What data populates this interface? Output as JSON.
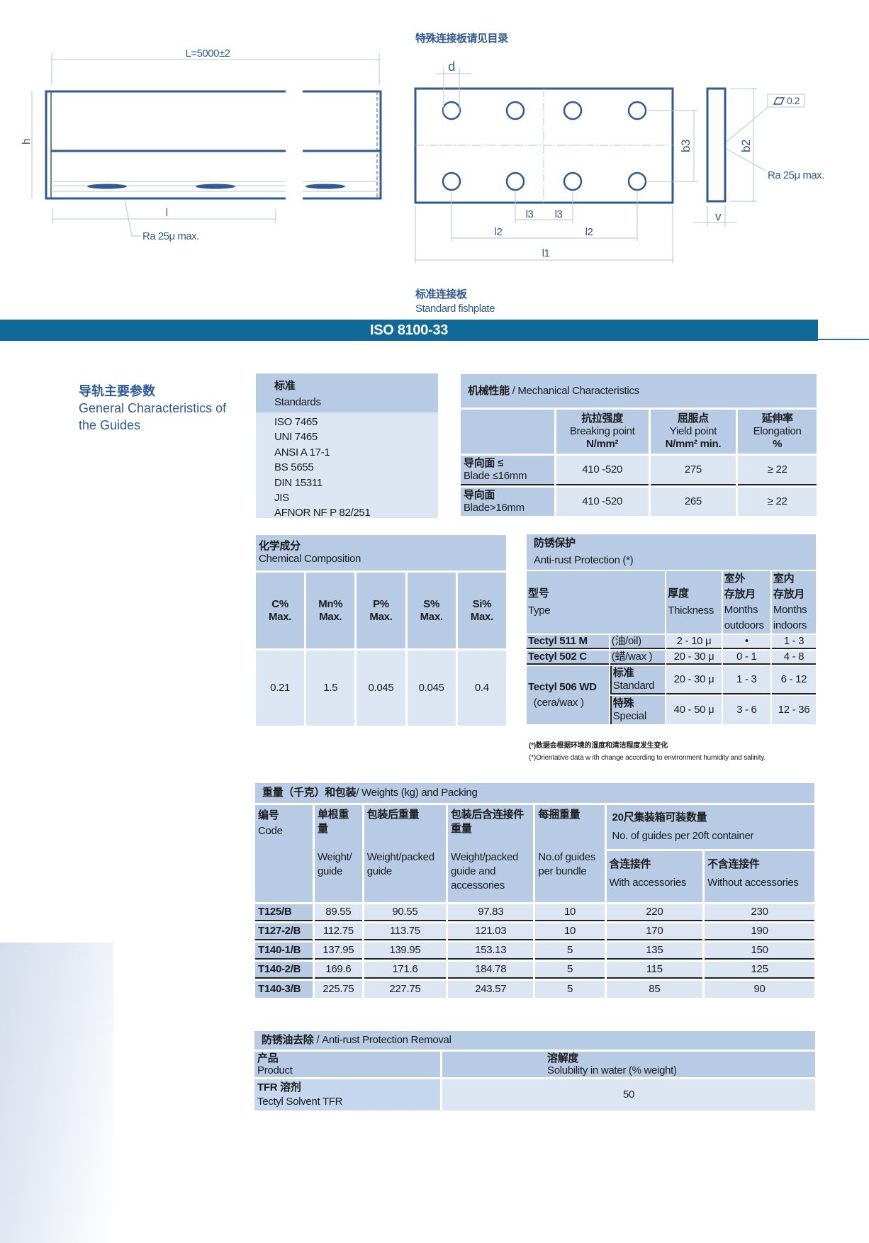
{
  "drawing": {
    "special_note": "特殊连接板请见目录",
    "rail_length": "L=5000±2",
    "h": "h",
    "l": "l",
    "ra_left": "Ra 25μ max.",
    "d": "d",
    "b3": "b3",
    "b2": "b2",
    "flatness": "0.2",
    "ra_right": "Ra 25μ max.",
    "l3a": "l3",
    "l3b": "l3",
    "l2a": "l2",
    "l2b": "l2",
    "l1": "l1",
    "v": "v",
    "fishplate_cn": "标准连接板",
    "fishplate_en": "Standard fishplate"
  },
  "banner": "ISO 8100-33",
  "colors": {
    "banner": "#0f6a99",
    "header_cell": "#b7cbe4",
    "body_cell": "#dce6f2",
    "heading": "#2e5c9a"
  },
  "general": {
    "cn": "导轨主要参数",
    "en1": "General Characteristics of",
    "en2": "the Guides"
  },
  "standards": {
    "cn": "标准",
    "en": "Standards",
    "items": [
      "ISO 7465",
      "UNI 7465",
      "ANSI A 17-1",
      "BS 5655",
      "DIN 15311",
      "JIS",
      "AFNOR NF P 82/251"
    ]
  },
  "mechanical": {
    "title_cn": "机械性能",
    "title_en": " / Mechanical Characteristics",
    "cols": [
      {
        "cn": "抗拉强度",
        "en": "Breaking point",
        "unit": "N/mm²"
      },
      {
        "cn": "屈服点",
        "en": "Yield point",
        "unit": "N/mm² min."
      },
      {
        "cn": "延伸率",
        "en": "Elongation",
        "unit": "%"
      }
    ],
    "rows": [
      {
        "cn": "导向面 ≤",
        "en": "Blade ≤16mm",
        "values": [
          "410 -520",
          "275",
          "≥ 22"
        ]
      },
      {
        "cn": "导向面",
        "en": "Blade>16mm",
        "values": [
          "410 -520",
          "265",
          "≥ 22"
        ]
      }
    ]
  },
  "chemical": {
    "cn": "化学成分",
    "en": "Chemical Composition",
    "cols": [
      "C%",
      "Mn%",
      "P%",
      "S%",
      "Si%"
    ],
    "max": "Max.",
    "values": [
      "0.21",
      "1.5",
      "0.045",
      "0.045",
      "0.4"
    ]
  },
  "antirust": {
    "cn": "防锈保护",
    "en": "Anti-rust  Protection (*)",
    "type_cn": "型号",
    "type_en": "Type",
    "thick_cn": "厚度",
    "thick_en": "Thickness",
    "out_cn1": "室外",
    "out_cn2": "存放月",
    "out_en1": "Months",
    "out_en2": "outdoors",
    "in_cn1": "室内",
    "in_cn2": "存放月",
    "in_en1": "Months",
    "in_en2": "indoors",
    "r1": {
      "name": "Tectyl 511 M",
      "kind": "(油/oil)",
      "thick": "2 - 10 μ",
      "out": "•",
      "in": "1 - 3"
    },
    "r2": {
      "name": "Tectyl 502 C",
      "kind": "(蜡/wax )",
      "thick": "20 - 30 μ",
      "out": "0 - 1",
      "in": "4 - 8"
    },
    "r3": {
      "name": "Tectyl 506 WD",
      "kind": "(cera/wax )",
      "std_cn": "标准",
      "std_en": "Standard",
      "std_thick": "20 - 30 μ",
      "std_out": "1 - 3",
      "std_in": "6 - 12",
      "sp_cn": "特殊",
      "sp_en": "Special",
      "sp_thick": "40 - 50 μ",
      "sp_out": "3 - 6",
      "sp_in": "12 - 36"
    },
    "note_cn": "(*)数据会根据环境的湿度和清洁程度发生变化",
    "note_en": "(*)Orientative data w ith change according to environment humidity and salinity."
  },
  "weights": {
    "title_cn": "重量（千克）和包装",
    "title_en": "/ Weights (kg) and Packing",
    "h_code_cn": "编号",
    "h_code_en": "Code",
    "h_w_cn": "单根重量",
    "h_w_en": "Weight/ guide",
    "h_wp_cn": "包装后重量",
    "h_wp_en": "Weight/packed guide",
    "h_wpa_cn": "包装后含连接件重量",
    "h_wpa_en": "Weight/packed guide and accessories",
    "h_b_cn": "每捆重量",
    "h_b_en": "No.of guides per bundle",
    "h_c_cn": "20尺集装箱可装数量",
    "h_c_en": "No. of guides per 20ft container",
    "h_with_cn": "含连接件",
    "h_with_en": "With accessories",
    "h_without_cn": "不含连接件",
    "h_without_en": "Without accessories",
    "rows": [
      [
        "T125/B",
        "89.55",
        "90.55",
        "97.83",
        "10",
        "220",
        "230"
      ],
      [
        "T127-2/B",
        "112.75",
        "113.75",
        "121.03",
        "10",
        "170",
        "190"
      ],
      [
        "T140-1/B",
        "137.95",
        "139.95",
        "153.13",
        "5",
        "135",
        "150"
      ],
      [
        "T140-2/B",
        "169.6",
        "171.6",
        "184.78",
        "5",
        "115",
        "125"
      ],
      [
        "T140-3/B",
        "225.75",
        "227.75",
        "243.57",
        "5",
        "85",
        "90"
      ]
    ]
  },
  "removal": {
    "title_cn": "防锈油去除",
    "title_en": " / Anti-rust Protection Removal",
    "product_cn": "产品",
    "product_en": "Product",
    "sol_cn": "溶解度",
    "sol_en": "Solubility in water (% weight)",
    "item_cn": "TFR 溶剂",
    "item_en": "Tectyl Solvent TFR",
    "value": "50"
  }
}
